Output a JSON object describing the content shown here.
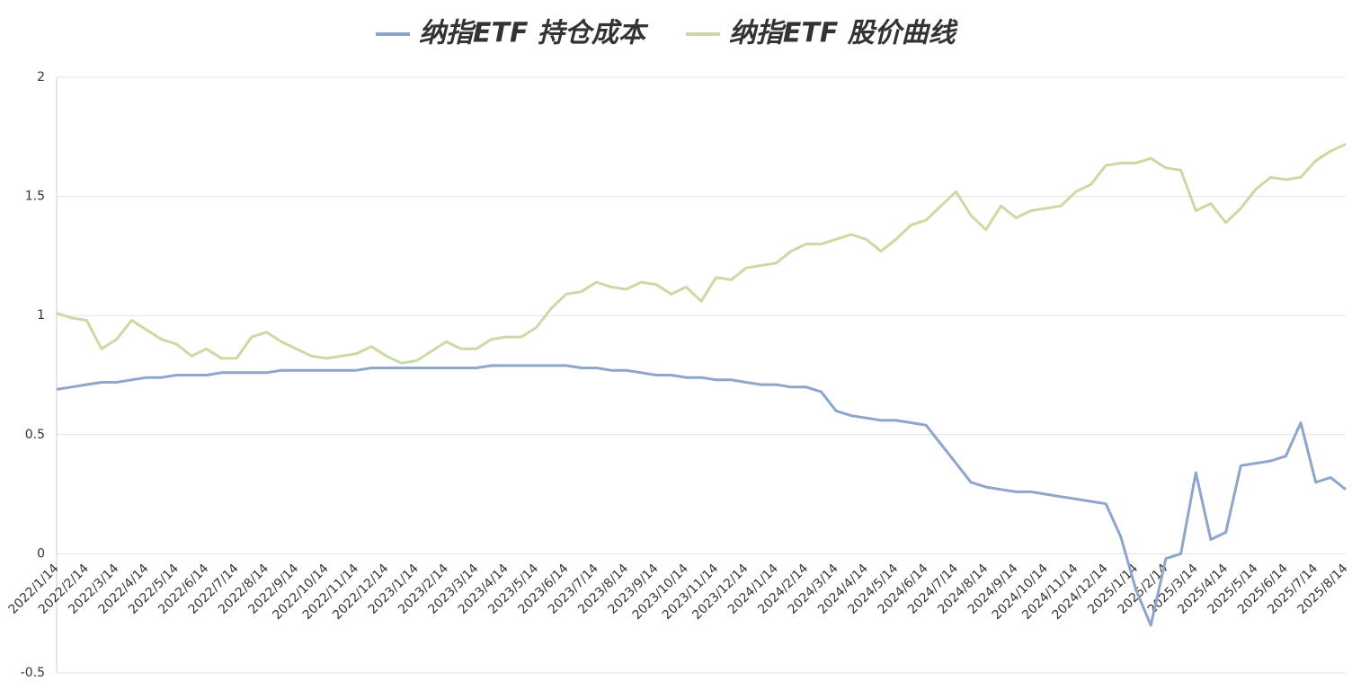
{
  "chart_data": {
    "type": "line",
    "categories": [
      "2022/1/14",
      null,
      "2022/2/14",
      null,
      "2022/3/14",
      null,
      "2022/4/14",
      null,
      "2022/5/14",
      null,
      "2022/6/14",
      null,
      "2022/7/14",
      null,
      "2022/8/14",
      null,
      "2022/9/14",
      null,
      "2022/10/14",
      null,
      "2022/11/14",
      null,
      "2022/12/14",
      null,
      "2023/1/14",
      null,
      "2023/2/14",
      null,
      "2023/3/14",
      null,
      "2023/4/14",
      null,
      "2023/5/14",
      null,
      "2023/6/14",
      null,
      "2023/7/14",
      null,
      "2023/8/14",
      null,
      "2023/9/14",
      null,
      "2023/10/14",
      null,
      "2023/11/14",
      null,
      "2023/12/14",
      null,
      "2024/1/14",
      null,
      "2024/2/14",
      null,
      "2024/3/14",
      null,
      "2024/4/14",
      null,
      "2024/5/14",
      null,
      "2024/6/14",
      null,
      "2024/7/14",
      null,
      "2024/8/14",
      null,
      "2024/9/14",
      null,
      "2024/10/14",
      null,
      "2024/11/14",
      null,
      "2024/12/14",
      null,
      "2025/1/14",
      null,
      "2025/2/14",
      null,
      "2025/3/14",
      null,
      "2025/4/14",
      null,
      "2025/5/14",
      null,
      "2025/6/14",
      null,
      "2025/7/14",
      null,
      "2025/8/14"
    ],
    "series": [
      {
        "name": "纳指ETF 持仓成本",
        "color": "#8ea5cc",
        "values": [
          0.69,
          0.7,
          0.71,
          0.72,
          0.72,
          0.73,
          0.74,
          0.74,
          0.75,
          0.75,
          0.75,
          0.76,
          0.76,
          0.76,
          0.76,
          0.77,
          0.77,
          0.77,
          0.77,
          0.77,
          0.77,
          0.78,
          0.78,
          0.78,
          0.78,
          0.78,
          0.78,
          0.78,
          0.78,
          0.79,
          0.79,
          0.79,
          0.79,
          0.79,
          0.79,
          0.78,
          0.78,
          0.77,
          0.77,
          0.76,
          0.75,
          0.75,
          0.74,
          0.74,
          0.73,
          0.73,
          0.72,
          0.71,
          0.71,
          0.7,
          0.7,
          0.68,
          0.6,
          0.58,
          0.57,
          0.56,
          0.56,
          0.55,
          0.54,
          0.46,
          0.38,
          0.3,
          0.28,
          0.27,
          0.26,
          0.26,
          0.25,
          0.24,
          0.23,
          0.22,
          0.21,
          0.07,
          -0.15,
          -0.3,
          -0.02,
          0.0,
          0.34,
          0.06,
          0.09,
          0.37,
          0.38,
          0.39,
          0.41,
          0.55,
          0.3,
          0.32,
          0.27
        ]
      },
      {
        "name": "纳指ETF 股价曲线",
        "color": "#c9dba3",
        "values": [
          1.01,
          0.99,
          0.98,
          0.86,
          0.9,
          0.98,
          0.94,
          0.9,
          0.88,
          0.83,
          0.86,
          0.82,
          0.82,
          0.91,
          0.93,
          0.89,
          0.86,
          0.83,
          0.82,
          0.83,
          0.84,
          0.87,
          0.83,
          0.8,
          0.81,
          0.85,
          0.89,
          0.86,
          0.86,
          0.9,
          0.91,
          0.91,
          0.95,
          1.03,
          1.09,
          1.1,
          1.14,
          1.12,
          1.11,
          1.14,
          1.13,
          1.09,
          1.12,
          1.06,
          1.16,
          1.15,
          1.2,
          1.21,
          1.22,
          1.27,
          1.3,
          1.3,
          1.32,
          1.34,
          1.32,
          1.27,
          1.32,
          1.38,
          1.4,
          1.46,
          1.52,
          1.42,
          1.36,
          1.46,
          1.41,
          1.44,
          1.45,
          1.46,
          1.52,
          1.55,
          1.63,
          1.64,
          1.64,
          1.66,
          1.62,
          1.61,
          1.44,
          1.47,
          1.39,
          1.45,
          1.53,
          1.58,
          1.57,
          1.58,
          1.65,
          1.69,
          1.72
        ]
      }
    ],
    "ylim": [
      -0.5,
      2
    ],
    "yticks": [
      -0.5,
      0,
      0.5,
      1,
      1.5,
      2
    ],
    "grid": true
  }
}
